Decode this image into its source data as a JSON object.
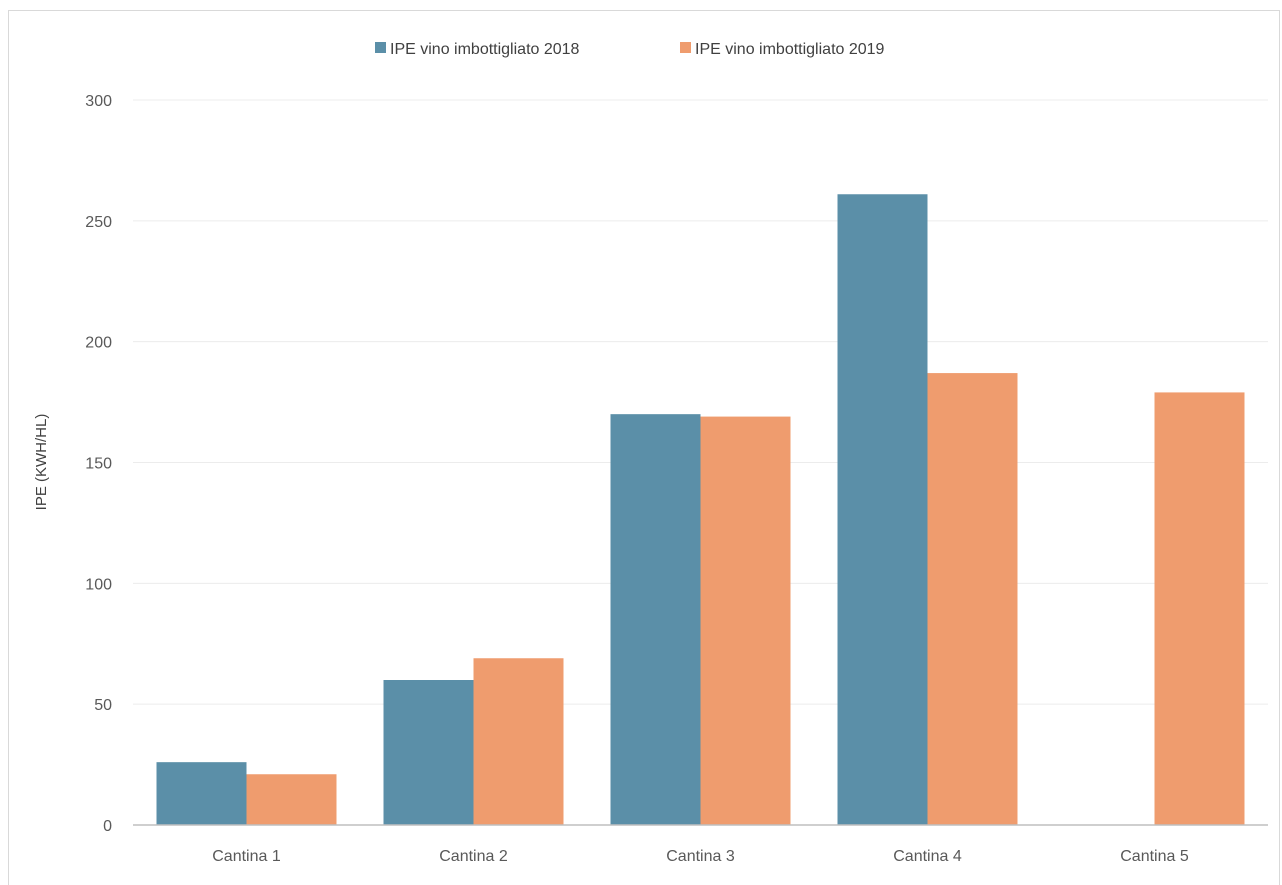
{
  "chart_data": {
    "type": "bar",
    "title": "",
    "xlabel": "",
    "ylabel": "IPE (KWH/HL)",
    "categories": [
      "Cantina 1",
      "Cantina 2",
      "Cantina 3",
      "Cantina 4",
      "Cantina 5"
    ],
    "series": [
      {
        "name": "IPE vino imbottigliato 2018",
        "color": "#5b8fa8",
        "values": [
          26,
          60,
          170,
          261,
          0
        ]
      },
      {
        "name": "IPE vino imbottigliato 2019",
        "color": "#ef9c6e",
        "values": [
          21,
          69,
          169,
          187,
          179
        ]
      }
    ],
    "ylim": [
      0,
      300
    ],
    "yticks": [
      0,
      50,
      100,
      150,
      200,
      250,
      300
    ],
    "grid": true,
    "legend_position": "top-center"
  }
}
